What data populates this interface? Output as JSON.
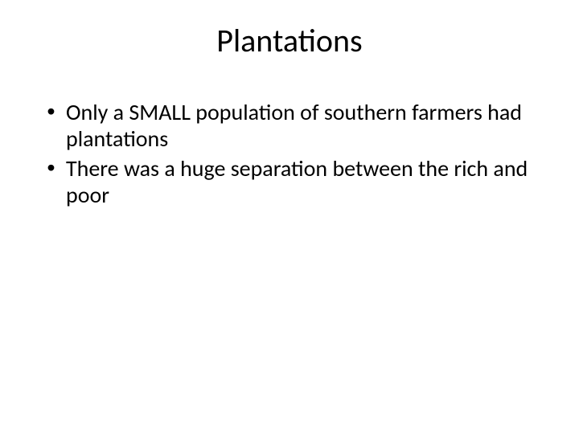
{
  "slide": {
    "title": "Plantations",
    "bullets": [
      "Only a SMALL population of southern farmers had plantations",
      "There was a huge separation between the rich and poor"
    ],
    "background_color": "#ffffff",
    "text_color": "#000000",
    "title_fontsize": 40,
    "body_fontsize": 28,
    "font_family": "Calibri"
  }
}
